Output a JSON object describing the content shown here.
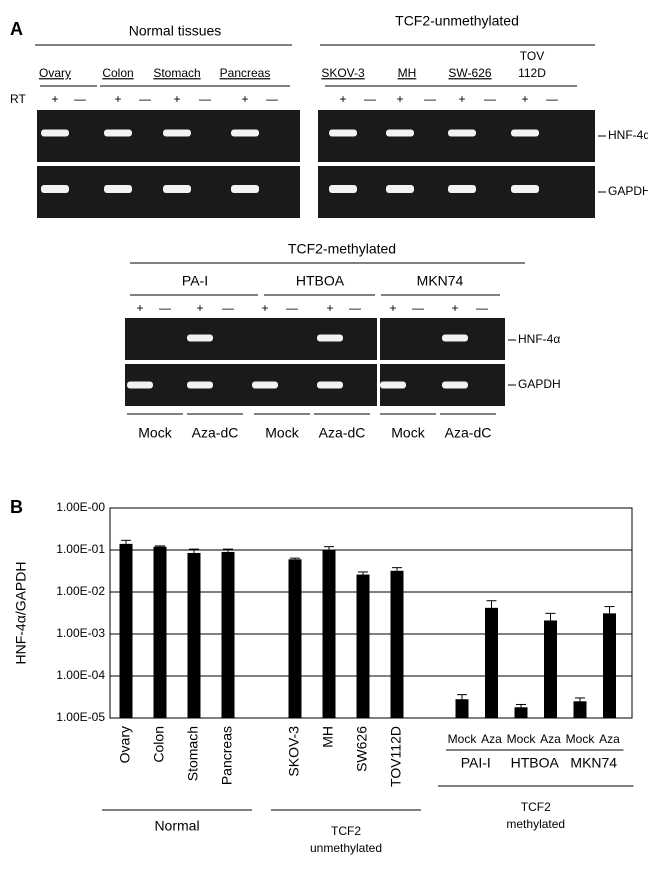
{
  "panel_a": {
    "label": "A",
    "normal_title": "Normal tissues",
    "unmeth_title": "TCF2-unmethylated",
    "rt_label": "RT",
    "samples": [
      "Ovary",
      "Colon",
      "Stomach",
      "Pancreas",
      "SKOV-3",
      "MH",
      "SW-626"
    ],
    "tov": [
      "TOV",
      "112D"
    ],
    "lanes_top": [
      "+",
      "—",
      "+",
      "—",
      "+",
      "—",
      "+",
      "—",
      "+",
      "—",
      "+",
      "—",
      "+",
      "—",
      "+",
      "—"
    ],
    "genes": [
      "HNF-4α",
      "GAPDH"
    ],
    "meth_title": "TCF2-methylated",
    "meth_lines": [
      "PA-I",
      "HTBOA",
      "MKN74"
    ],
    "lanes_mid": [
      "+",
      "—",
      "+",
      "—",
      "+",
      "—",
      "+",
      "—",
      "+",
      "—",
      "+",
      "—"
    ],
    "treatments": [
      "Mock",
      "Aza-dC",
      "Mock",
      "Aza-dC",
      "Mock",
      "Aza-dC"
    ]
  },
  "chart_data": {
    "type": "bar",
    "panel_label": "B",
    "ylabel": "HNF-4α/GAPDH",
    "log_scale": true,
    "grid": true,
    "color": "#000000",
    "ylim": [
      1e-05,
      1
    ],
    "yticks": [
      {
        "value": 1e-05,
        "label": "1.00E-05"
      },
      {
        "value": 0.0001,
        "label": "1.00E-04"
      },
      {
        "value": 0.001,
        "label": "1.00E-03"
      },
      {
        "value": 0.01,
        "label": "1.00E-02"
      },
      {
        "value": 0.1,
        "label": "1.00E-01"
      },
      {
        "value": 1,
        "label": "1.00E-00"
      }
    ],
    "groups": [
      {
        "name": [
          "Normal"
        ],
        "categories": [
          "Ovary",
          "Colon",
          "Stomach",
          "Pancreas"
        ],
        "values": [
          0.14,
          0.12,
          0.085,
          0.09
        ],
        "errors": [
          0.03,
          0.005,
          0.02,
          0.015
        ]
      },
      {
        "name": [
          "TCF2",
          "unmethylated"
        ],
        "categories": [
          "SKOV-3",
          "MH",
          "SW626",
          "TOV112D"
        ],
        "values": [
          0.06,
          0.1,
          0.026,
          0.032
        ],
        "errors": [
          0.004,
          0.02,
          0.004,
          0.006
        ]
      },
      {
        "name": [
          "TCF2",
          "methylated"
        ],
        "subgroups": [
          "PAI-I",
          "HTBOA",
          "MKN74"
        ],
        "categories": [
          "Mock",
          "Aza",
          "Mock",
          "Aza",
          "Mock",
          "Aza"
        ],
        "values": [
          2.8e-05,
          0.0042,
          1.8e-05,
          0.0021,
          2.5e-05,
          0.0031
        ],
        "errors": [
          8e-06,
          0.002,
          3e-06,
          0.001,
          5e-06,
          0.0014
        ]
      }
    ]
  }
}
